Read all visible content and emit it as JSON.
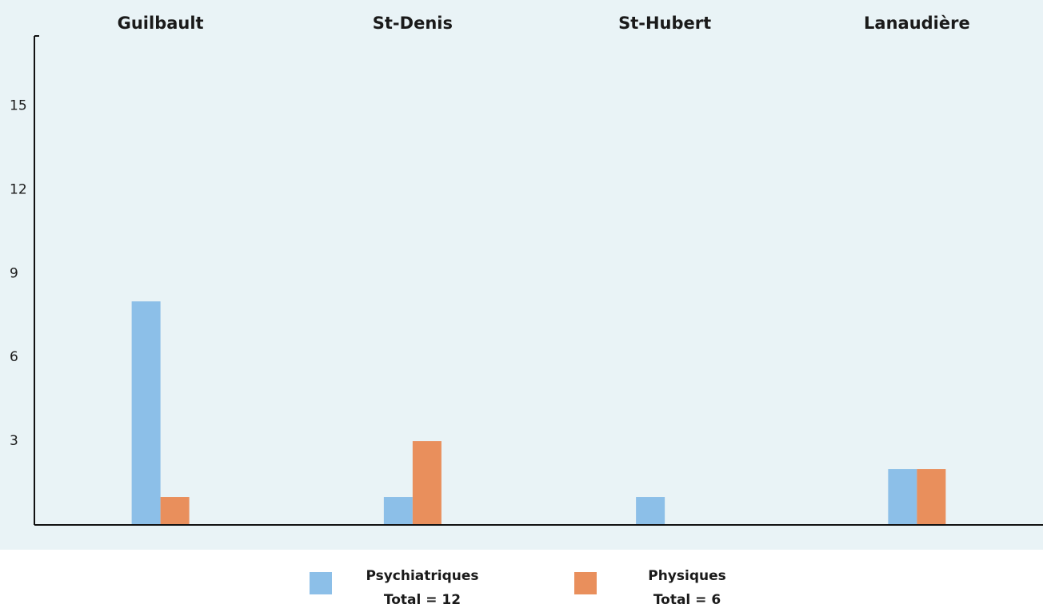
{
  "chart_data": {
    "type": "bar",
    "categories": [
      "Guilbault",
      "St-Denis",
      "St-Hubert",
      "Lanaudière"
    ],
    "series": [
      {
        "name": "Psychiatriques",
        "color": "#8cbfe8",
        "values": [
          8,
          1,
          1,
          2
        ]
      },
      {
        "name": "Physiques",
        "color": "#e98f5c",
        "values": [
          1,
          3,
          0,
          2
        ]
      }
    ],
    "legend_totals": [
      "Total = 12",
      "Total = 6"
    ],
    "ylim": [
      0,
      17.5
    ],
    "yticks": [
      3,
      6,
      9,
      12,
      15
    ],
    "grid": false
  }
}
